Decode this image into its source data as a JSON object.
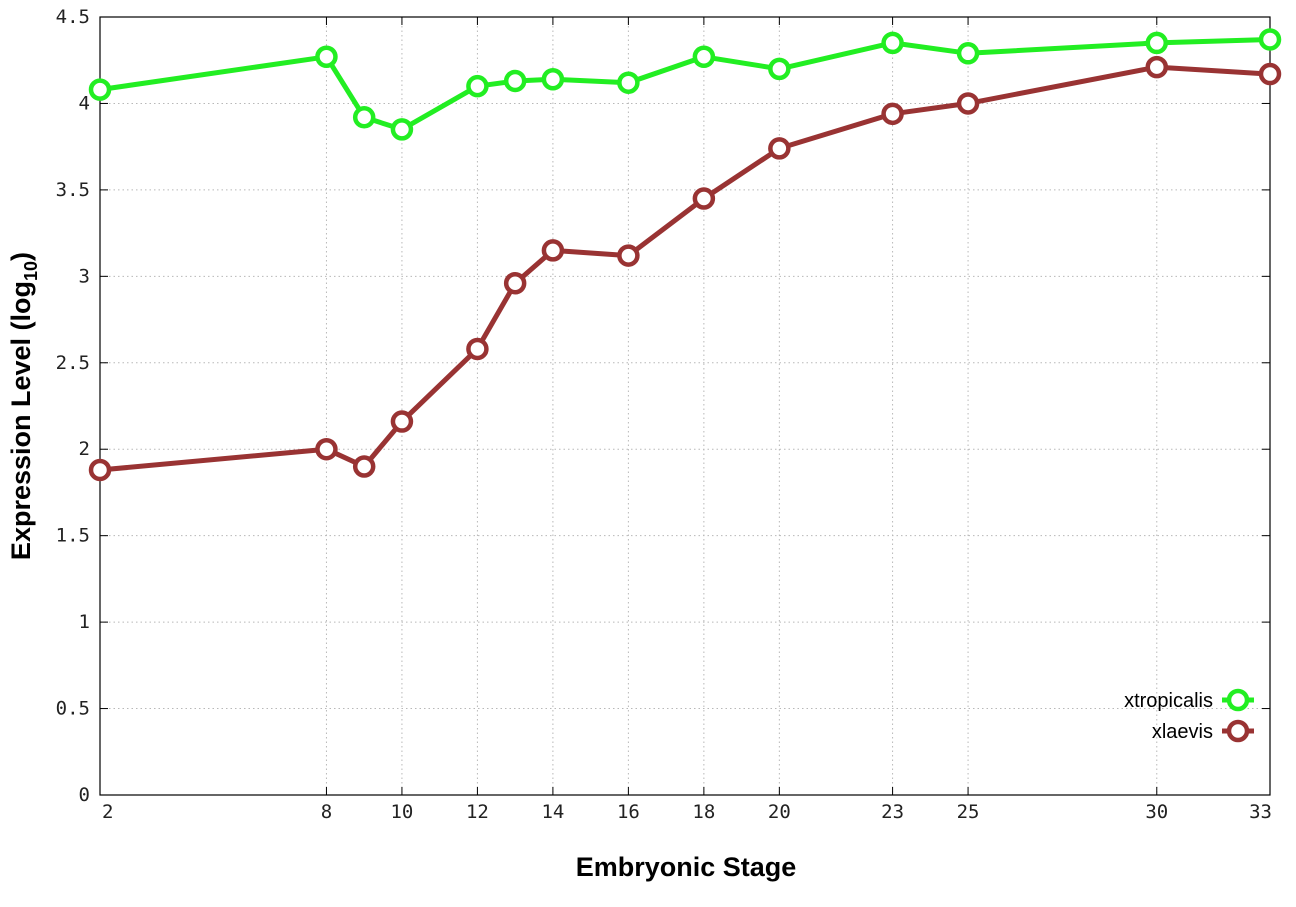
{
  "chart_data": {
    "type": "line",
    "xlabel": "Embryonic Stage",
    "ylabel": {
      "prefix": "Expression Level (log",
      "sub": "10",
      "suffix": ")"
    },
    "xlim": [
      2,
      33
    ],
    "ylim": [
      0,
      4.5
    ],
    "x_ticks": [
      "2",
      "8",
      "10",
      "12",
      "14",
      "16",
      "18",
      "20",
      "23",
      "25",
      "30",
      "33"
    ],
    "y_ticks": [
      "0",
      "0.5",
      "1",
      "1.5",
      "2",
      "2.5",
      "3",
      "3.5",
      "4",
      "4.5"
    ],
    "grid": true,
    "legend_position": "bottom-right",
    "x": [
      2,
      8,
      9,
      10,
      12,
      13,
      14,
      16,
      18,
      20,
      23,
      25,
      30,
      33
    ],
    "series": [
      {
        "name": "xtropicalis",
        "color": "#22ee22",
        "marker": "circle-open",
        "values": [
          4.08,
          4.27,
          3.92,
          3.85,
          4.1,
          4.13,
          4.14,
          4.12,
          4.27,
          4.2,
          4.35,
          4.29,
          4.35,
          4.37
        ]
      },
      {
        "name": "xlaevis",
        "color": "#993333",
        "marker": "circle-open",
        "values": [
          1.88,
          2.0,
          1.9,
          2.16,
          2.58,
          2.96,
          3.15,
          3.12,
          3.45,
          3.74,
          3.94,
          4.0,
          4.21,
          4.17
        ]
      }
    ]
  }
}
